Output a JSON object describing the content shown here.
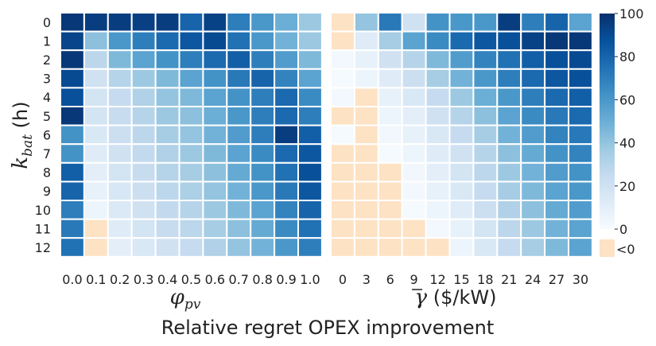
{
  "chart_data": {
    "type": "heatmap",
    "caption": "Relative regret OPEX improvement",
    "ylabel": "k_bat (h)",
    "ylabel_main": "k",
    "ylabel_sub": "bat",
    "ylabel_unit": " (h)",
    "row_labels": [
      "0",
      "1",
      "2",
      "3",
      "4",
      "5",
      "6",
      "7",
      "8",
      "9",
      "10",
      "11",
      "12"
    ],
    "left": {
      "xlabel": "φ_pv",
      "xlabel_main": "φ",
      "xlabel_sub": "pv",
      "col_labels": [
        "0.0",
        "0.1",
        "0.2",
        "0.3",
        "0.4",
        "0.5",
        "0.6",
        "0.7",
        "0.8",
        "0.9",
        "1.0"
      ],
      "values": [
        [
          97,
          95,
          95,
          94,
          95,
          80,
          93,
          70,
          60,
          50,
          38
        ],
        [
          92,
          42,
          60,
          70,
          78,
          85,
          90,
          75,
          60,
          48,
          38
        ],
        [
          97,
          28,
          45,
          55,
          62,
          70,
          78,
          82,
          70,
          58,
          45
        ],
        [
          90,
          20,
          30,
          38,
          45,
          55,
          62,
          72,
          80,
          68,
          55
        ],
        [
          88,
          18,
          25,
          32,
          40,
          45,
          55,
          62,
          70,
          78,
          65
        ],
        [
          97,
          18,
          24,
          30,
          38,
          42,
          50,
          60,
          70,
          78,
          70
        ],
        [
          62,
          15,
          22,
          28,
          35,
          40,
          48,
          58,
          70,
          95,
          82
        ],
        [
          62,
          12,
          20,
          26,
          32,
          38,
          45,
          55,
          65,
          78,
          85
        ],
        [
          82,
          10,
          18,
          24,
          30,
          35,
          42,
          52,
          62,
          75,
          88
        ],
        [
          80,
          8,
          16,
          22,
          28,
          33,
          40,
          48,
          60,
          72,
          85
        ],
        [
          70,
          5,
          14,
          20,
          26,
          30,
          38,
          45,
          55,
          68,
          80
        ],
        [
          72,
          -5,
          12,
          18,
          24,
          28,
          35,
          42,
          52,
          65,
          75
        ],
        [
          75,
          -5,
          10,
          15,
          20,
          25,
          32,
          40,
          48,
          60,
          70
        ]
      ]
    },
    "right": {
      "xlabel": "γ̄ ($/kW)",
      "xlabel_main": "γ",
      "xlabel_unit": " ($/kW)",
      "col_labels": [
        "0",
        "3",
        "6",
        "9",
        "12",
        "15",
        "18",
        "21",
        "24",
        "27",
        "30"
      ],
      "values": [
        [
          -5,
          40,
          72,
          20,
          62,
          60,
          60,
          95,
          70,
          80,
          55
        ],
        [
          -5,
          12,
          35,
          55,
          65,
          78,
          85,
          88,
          93,
          97,
          97
        ],
        [
          2,
          8,
          20,
          30,
          45,
          58,
          68,
          75,
          82,
          88,
          90
        ],
        [
          1,
          5,
          12,
          22,
          35,
          48,
          60,
          70,
          78,
          85,
          88
        ],
        [
          2,
          -5,
          8,
          15,
          25,
          38,
          50,
          60,
          70,
          78,
          82
        ],
        [
          -5,
          -5,
          5,
          10,
          20,
          30,
          42,
          55,
          65,
          72,
          78
        ],
        [
          1,
          -5,
          3,
          8,
          15,
          25,
          35,
          48,
          58,
          68,
          72
        ],
        [
          -5,
          -5,
          1,
          5,
          12,
          20,
          30,
          42,
          52,
          62,
          68
        ],
        [
          -5,
          -5,
          -5,
          3,
          10,
          18,
          28,
          38,
          48,
          58,
          62
        ],
        [
          -5,
          -5,
          -5,
          2,
          8,
          15,
          25,
          35,
          45,
          55,
          60
        ],
        [
          -5,
          -5,
          -5,
          1,
          5,
          12,
          22,
          32,
          42,
          52,
          58
        ],
        [
          -5,
          -5,
          -5,
          -5,
          2,
          8,
          18,
          28,
          38,
          48,
          55
        ],
        [
          -5,
          -5,
          -5,
          -5,
          -5,
          5,
          15,
          25,
          35,
          45,
          55
        ]
      ]
    },
    "colorbar": {
      "range": [
        0,
        100
      ],
      "ticks": [
        "0",
        "20",
        "40",
        "60",
        "80",
        "100"
      ],
      "tick_values": [
        0,
        20,
        40,
        60,
        80,
        100
      ],
      "negative_label": "<0",
      "negative_color": "#fde2c4",
      "colormap": "Blues"
    }
  }
}
